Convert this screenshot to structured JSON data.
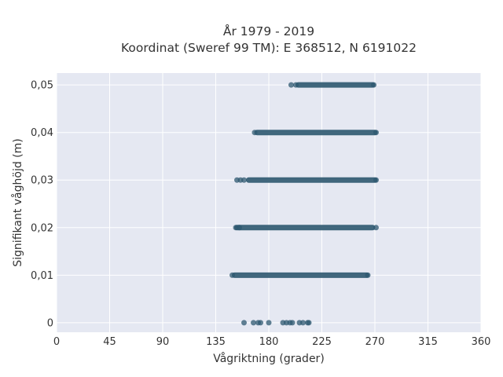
{
  "chart_data": {
    "type": "scatter",
    "title": "År 1979 - 2019",
    "subtitle": "Koordinat (Sweref 99 TM): E 368512, N 6191022",
    "xlabel": "Vågriktning (grader)",
    "ylabel": "Signifikant våghöjd (m)",
    "xlim": [
      0,
      360
    ],
    "ylim": [
      -0.002,
      0.0525
    ],
    "x_ticks": [
      0,
      45,
      90,
      135,
      180,
      225,
      270,
      315,
      360
    ],
    "x_tick_labels": [
      "0",
      "45",
      "90",
      "135",
      "180",
      "225",
      "270",
      "315",
      "360"
    ],
    "y_ticks": [
      0,
      0.01,
      0.02,
      0.03,
      0.04,
      0.05
    ],
    "y_tick_labels": [
      "0",
      "0,01",
      "0,02",
      "0,03",
      "0,04",
      "0,05"
    ],
    "grid": true,
    "colors": {
      "marker": "#2e5870",
      "plot_bg": "#e5e8f2",
      "grid": "#ffffff"
    },
    "series": [
      {
        "groups": [
          {
            "y": 0.05,
            "band": [
              205,
              268
            ],
            "points": [
              199,
              203,
              269
            ]
          },
          {
            "y": 0.04,
            "band": [
              170,
              270
            ],
            "points": [
              168,
              271
            ]
          },
          {
            "y": 0.03,
            "band": [
              163,
              270
            ],
            "points": [
              153,
              156,
              159,
              271
            ]
          },
          {
            "y": 0.02,
            "band": [
              153,
              268
            ],
            "points": [
              152,
              155,
              271
            ]
          },
          {
            "y": 0.01,
            "band": [
              151,
              263
            ],
            "points": [
              149,
              264
            ]
          },
          {
            "y": 0,
            "band": null,
            "points": [
              159,
              167,
              171,
              173,
              180,
              192,
              195,
              198,
              200,
              206,
              209,
              213,
              214
            ]
          }
        ]
      }
    ]
  }
}
